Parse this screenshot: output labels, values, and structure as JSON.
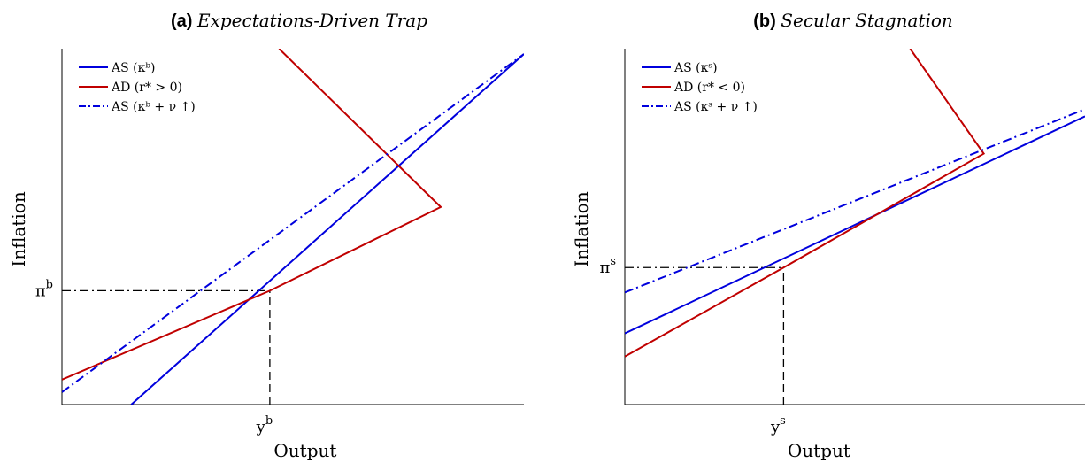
{
  "colors": {
    "as": "#0000dd",
    "ad": "#c00000",
    "ref": "#000000"
  },
  "chart_data": [
    {
      "type": "line",
      "title_tag": "(a)",
      "title_name": "Expectations-Driven Trap",
      "xlabel": "Output",
      "ylabel": "Inflation",
      "xlim": [
        0,
        100
      ],
      "ylim": [
        0,
        100
      ],
      "x_tick": {
        "label": "y",
        "sup": "b",
        "value": 45
      },
      "y_tick": {
        "label": "π",
        "sup": "b",
        "value": 32
      },
      "x_ticks_numeric": false,
      "legend_position": "top-left",
      "series": [
        {
          "key": "as",
          "legend": "AS (κᵇ)",
          "color": "#0000dd",
          "dash": "solid",
          "x": [
            15,
            100
          ],
          "y": [
            0,
            98.5
          ]
        },
        {
          "key": "ad",
          "legend": "AD (r* > 0)",
          "color": "#c00000",
          "dash": "solid",
          "x": [
            0,
            45,
            82,
            47
          ],
          "y": [
            7,
            32,
            55.5,
            100
          ]
        },
        {
          "key": "as_nu",
          "legend": "AS (κᵇ + ν ↑)",
          "color": "#0000dd",
          "dash": "dashdot",
          "x": [
            0,
            100
          ],
          "y": [
            3.5,
            98.5
          ]
        }
      ],
      "reference_lines": [
        {
          "axis": "y",
          "value": 32,
          "from": 0,
          "to": 45,
          "style": "dashdot"
        },
        {
          "axis": "x",
          "value": 45,
          "from": 0,
          "to": 32,
          "style": "dashed"
        }
      ]
    },
    {
      "type": "line",
      "title_tag": "(b)",
      "title_name": "Secular Stagnation",
      "xlabel": "Output",
      "ylabel": "Inflation",
      "xlim": [
        0,
        100
      ],
      "ylim": [
        0,
        100
      ],
      "x_tick": {
        "label": "y",
        "sup": "s",
        "value": 34.5
      },
      "y_tick": {
        "label": "π",
        "sup": "s",
        "value": 38.5
      },
      "x_ticks_numeric": false,
      "legend_position": "top-left",
      "series": [
        {
          "key": "as",
          "legend": "AS (κˢ)",
          "color": "#0000dd",
          "dash": "solid",
          "x": [
            0,
            100
          ],
          "y": [
            20,
            81
          ]
        },
        {
          "key": "ad",
          "legend": "AD (r* < 0)",
          "color": "#c00000",
          "dash": "solid",
          "x": [
            0,
            34.5,
            78,
            62
          ],
          "y": [
            13.5,
            38.5,
            70.5,
            100
          ]
        },
        {
          "key": "as_nu",
          "legend": "AS (κˢ + ν ↑)",
          "color": "#0000dd",
          "dash": "dashdot",
          "x": [
            0,
            100
          ],
          "y": [
            31.5,
            83
          ]
        }
      ],
      "reference_lines": [
        {
          "axis": "y",
          "value": 38.5,
          "from": 0,
          "to": 34.5,
          "style": "dashdot"
        },
        {
          "axis": "x",
          "value": 34.5,
          "from": 0,
          "to": 38.5,
          "style": "dashed"
        }
      ]
    }
  ]
}
